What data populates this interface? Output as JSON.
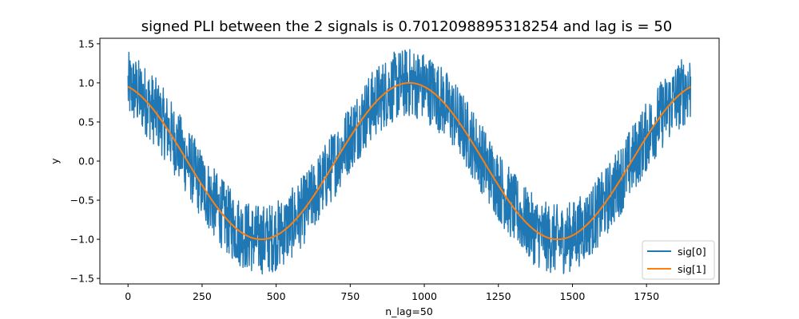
{
  "chart_data": {
    "type": "line",
    "title": "signed PLI between the 2 signals is 0.7012098895318254 and lag is = 50",
    "xlabel": "n_lag=50",
    "ylabel": "y",
    "xlim": [
      -95,
      1995
    ],
    "ylim": [
      -1.57,
      1.57
    ],
    "xticks": [
      0,
      250,
      500,
      750,
      1000,
      1250,
      1500,
      1750
    ],
    "yticks": [
      -1.5,
      -1.0,
      -0.5,
      0.0,
      0.5,
      1.0,
      1.5
    ],
    "ytick_labels": [
      "−1.5",
      "−1.0",
      "−0.5",
      "0.0",
      "0.5",
      "1.0",
      "1.5"
    ],
    "grid": false,
    "legend_position": "bottom-right",
    "n_points": 1900,
    "series": [
      {
        "name": "sig[0]",
        "color": "#1f77b4",
        "description": "cos(2*pi*(x - 950)/1000) plus uniform noise of amplitude ~0.45",
        "noise_amplitude": 0.45
      },
      {
        "name": "sig[1]",
        "color": "#ff7f0e",
        "x": [
          0,
          100,
          200,
          300,
          400,
          450,
          500,
          600,
          700,
          800,
          900,
          950,
          1000,
          1100,
          1200,
          1300,
          1400,
          1450,
          1500,
          1600,
          1700,
          1800,
          1899
        ],
        "y": [
          0.95,
          0.81,
          0.45,
          -0.05,
          -0.59,
          -1.0,
          -0.95,
          -0.81,
          -0.45,
          0.05,
          0.59,
          1.0,
          0.95,
          0.81,
          0.45,
          -0.05,
          -0.59,
          -1.0,
          -0.95,
          -0.81,
          -0.45,
          0.05,
          0.95
        ]
      }
    ]
  }
}
